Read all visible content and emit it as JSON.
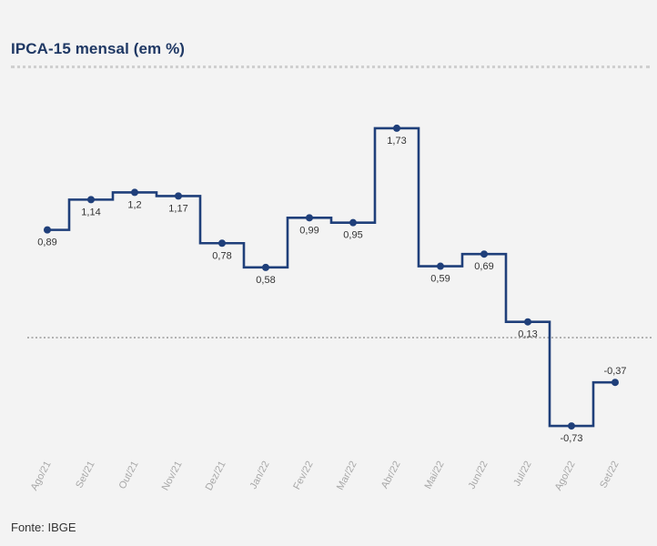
{
  "chart_data": {
    "type": "line",
    "style": "step",
    "title": "IPCA-15 mensal (em %)",
    "xlabel": "",
    "ylabel": "",
    "categories": [
      "Ago/21",
      "Set/21",
      "Out/21",
      "Nov/21",
      "Dez/21",
      "Jan/22",
      "Fev/22",
      "Mar/22",
      "Abr/22",
      "Mai/22",
      "Jun/22",
      "Jul/22",
      "Ago/22",
      "Set/22"
    ],
    "values": [
      0.89,
      1.14,
      1.2,
      1.17,
      0.78,
      0.58,
      0.99,
      0.95,
      1.73,
      0.59,
      0.69,
      0.13,
      -0.73,
      -0.37
    ],
    "value_labels": [
      "0,89",
      "1,14",
      "1,2",
      "1,17",
      "0,78",
      "0,58",
      "0,99",
      "0,95",
      "1,73",
      "0,59",
      "0,69",
      "0,13",
      "-0,73",
      "-0,37"
    ],
    "label_positions": [
      "below",
      "below",
      "below",
      "below",
      "below",
      "below",
      "below",
      "below",
      "below",
      "below",
      "below",
      "below",
      "below",
      "above"
    ],
    "reference_line": 0,
    "line_color": "#1f3f7a",
    "reference_line_color": "#9a9a9a",
    "grid": false,
    "legend": "none"
  },
  "source": "Fonte: IBGE"
}
